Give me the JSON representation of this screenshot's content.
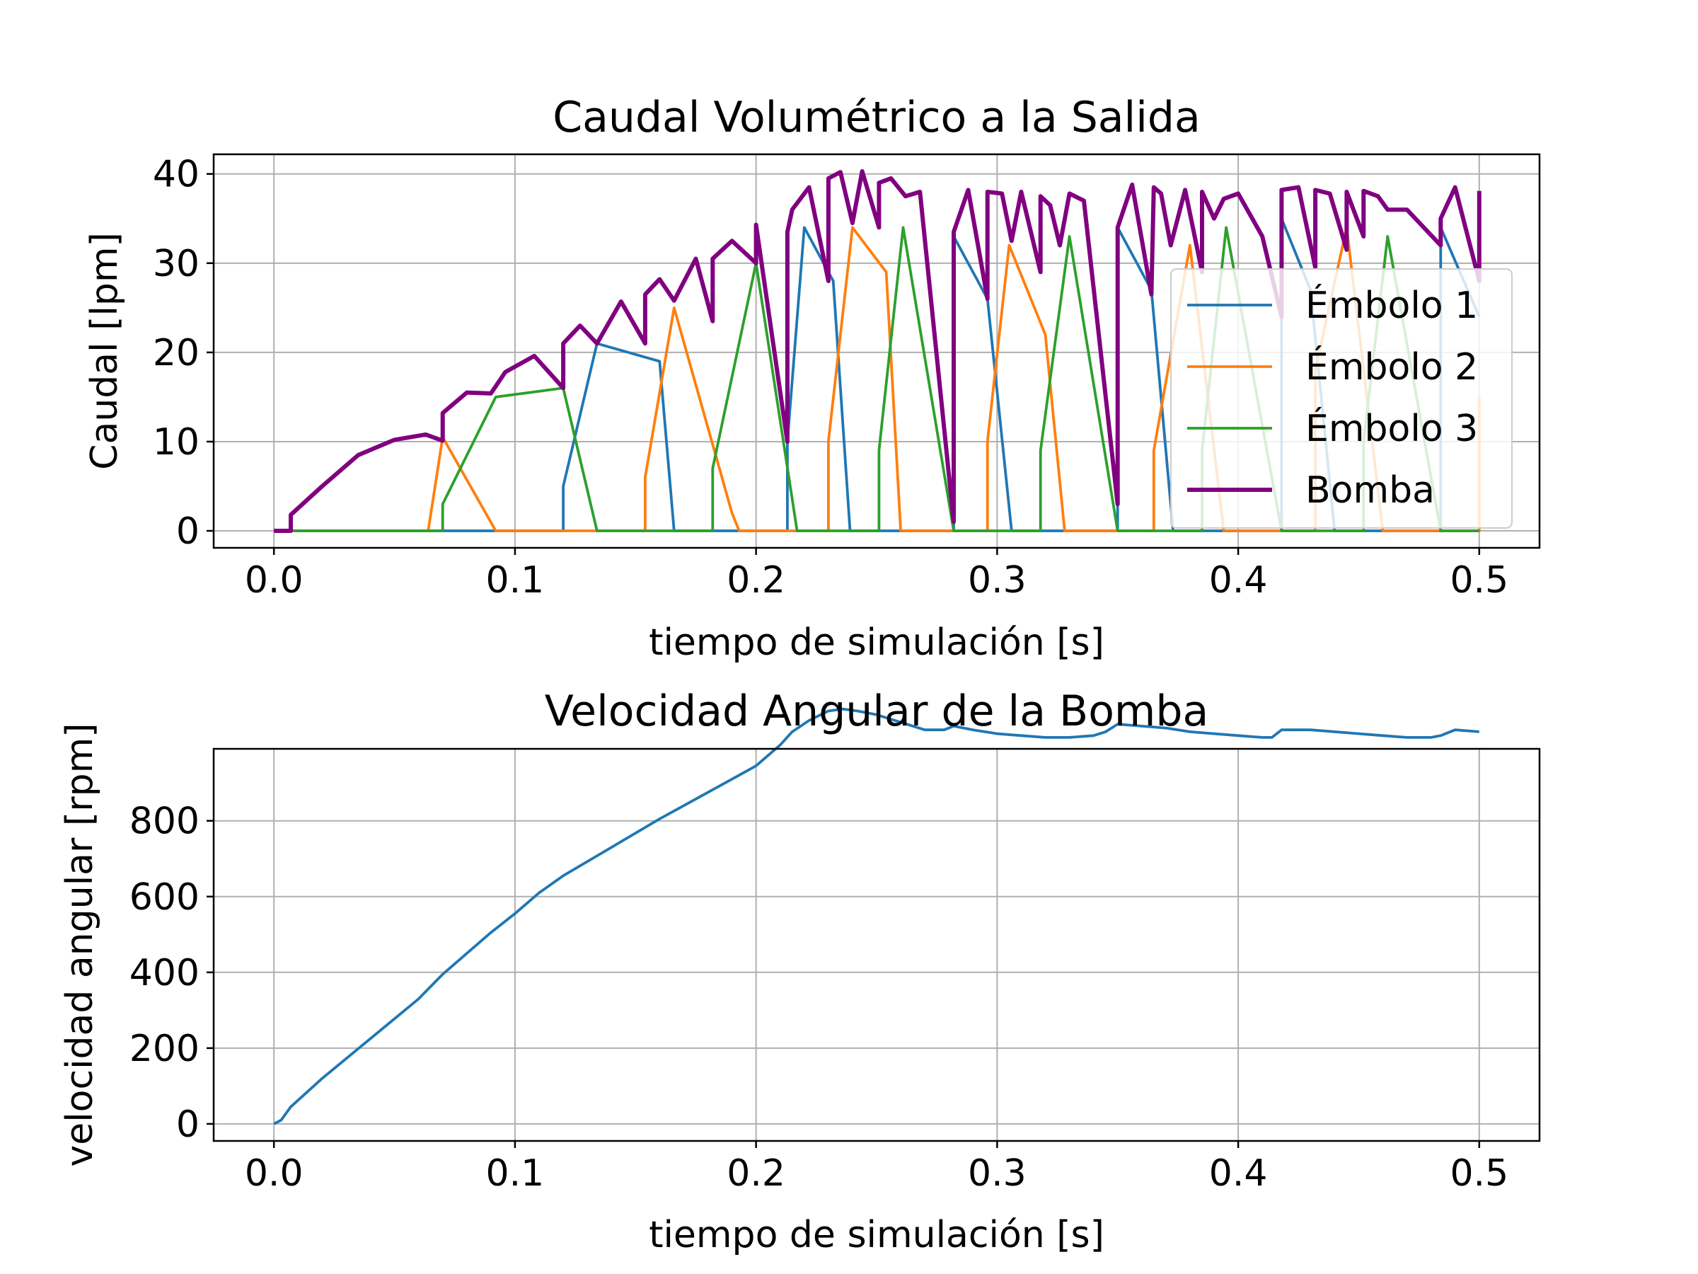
{
  "chart_data": [
    {
      "type": "line",
      "title": "Caudal Volumétrico a la Salida",
      "xlabel": "tiempo de simulación [s]",
      "ylabel": "Caudal [lpm]",
      "xlim": [
        -0.025,
        0.525
      ],
      "ylim": [
        -1.9,
        42.2
      ],
      "xticks": [
        0.0,
        0.1,
        0.2,
        0.3,
        0.4,
        0.5
      ],
      "xtick_labels": [
        "0.0",
        "0.1",
        "0.2",
        "0.3",
        "0.4",
        "0.5"
      ],
      "yticks": [
        0,
        10,
        20,
        30,
        40
      ],
      "ytick_labels": [
        "0",
        "10",
        "20",
        "30",
        "40"
      ],
      "grid": true,
      "legend": "right",
      "series": [
        {
          "name": "Émbolo 1",
          "color": "#1f77b4",
          "x": [
            0.0,
            0.12,
            0.12,
            0.134,
            0.16,
            0.166,
            0.213,
            0.213,
            0.22,
            0.232,
            0.239,
            0.282,
            0.282,
            0.296,
            0.306,
            0.35,
            0.35,
            0.364,
            0.373,
            0.418,
            0.418,
            0.43,
            0.44,
            0.484,
            0.484,
            0.5,
            0.5
          ],
          "y": [
            0,
            0,
            5,
            21,
            19,
            0,
            0,
            10,
            34,
            28,
            0,
            0,
            33,
            26,
            0,
            0,
            34,
            27,
            0,
            0,
            35,
            27,
            0,
            0,
            34,
            24,
            24
          ]
        },
        {
          "name": "Émbolo 2",
          "color": "#ff7f0e",
          "x": [
            0.0,
            0.064,
            0.07,
            0.092,
            0.154,
            0.154,
            0.166,
            0.19,
            0.193,
            0.23,
            0.23,
            0.24,
            0.254,
            0.26,
            0.296,
            0.296,
            0.305,
            0.32,
            0.328,
            0.365,
            0.365,
            0.38,
            0.394,
            0.432,
            0.432,
            0.445,
            0.46,
            0.5,
            0.5
          ],
          "y": [
            0,
            0,
            10.5,
            0,
            0,
            6,
            25,
            2,
            0,
            0,
            10,
            34,
            29,
            0,
            0,
            10,
            32,
            22,
            0,
            0,
            9,
            32,
            0,
            0,
            18,
            34,
            0,
            0,
            15
          ]
        },
        {
          "name": "Émbolo 3",
          "color": "#2ca02c",
          "x": [
            0.0,
            0.07,
            0.07,
            0.092,
            0.12,
            0.134,
            0.182,
            0.182,
            0.2,
            0.217,
            0.251,
            0.251,
            0.261,
            0.282,
            0.318,
            0.318,
            0.33,
            0.35,
            0.385,
            0.385,
            0.395,
            0.418,
            0.452,
            0.452,
            0.462,
            0.484,
            0.5
          ],
          "y": [
            0,
            0,
            3,
            15,
            16,
            0,
            0,
            7,
            30,
            0,
            0,
            9,
            34,
            0,
            0,
            9,
            33,
            0,
            0,
            9,
            34,
            0,
            0,
            10,
            33,
            0,
            0
          ]
        },
        {
          "name": "Bomba",
          "color": "#800080",
          "x": [
            0.0,
            0.007,
            0.007,
            0.02,
            0.035,
            0.05,
            0.063,
            0.07,
            0.07,
            0.08,
            0.09,
            0.096,
            0.108,
            0.12,
            0.12,
            0.127,
            0.134,
            0.144,
            0.154,
            0.154,
            0.16,
            0.166,
            0.175,
            0.182,
            0.182,
            0.19,
            0.2,
            0.2,
            0.2,
            0.213,
            0.213,
            0.215,
            0.222,
            0.23,
            0.23,
            0.235,
            0.24,
            0.244,
            0.251,
            0.251,
            0.256,
            0.262,
            0.268,
            0.282,
            0.282,
            0.288,
            0.296,
            0.296,
            0.302,
            0.306,
            0.31,
            0.318,
            0.318,
            0.322,
            0.326,
            0.33,
            0.336,
            0.35,
            0.35,
            0.356,
            0.364,
            0.365,
            0.368,
            0.372,
            0.378,
            0.385,
            0.385,
            0.39,
            0.394,
            0.4,
            0.41,
            0.418,
            0.418,
            0.425,
            0.432,
            0.432,
            0.438,
            0.445,
            0.445,
            0.452,
            0.452,
            0.458,
            0.462,
            0.47,
            0.484,
            0.484,
            0.49,
            0.5,
            0.5
          ],
          "y": [
            0,
            0,
            1.8,
            5,
            8.5,
            10.2,
            10.8,
            10.1,
            13.2,
            15.5,
            15.4,
            17.8,
            19.6,
            16,
            21,
            23,
            21,
            25.7,
            21,
            26.5,
            28.2,
            25.8,
            30.5,
            23.5,
            30.5,
            32.5,
            30,
            34.3,
            34.3,
            10,
            33.5,
            36,
            38.5,
            28,
            39.5,
            40.2,
            34.5,
            40.3,
            34,
            39,
            39.5,
            37.5,
            38,
            1,
            33.5,
            38.2,
            26,
            38,
            37.8,
            32.5,
            38,
            29,
            37.5,
            36.5,
            32,
            37.8,
            37,
            3,
            34,
            38.8,
            26.5,
            38.5,
            37.8,
            32,
            38.2,
            29,
            38,
            35,
            37.2,
            37.8,
            33,
            24,
            38.2,
            38.5,
            29.5,
            38.2,
            37.8,
            31.5,
            38,
            33,
            38.1,
            37.5,
            36,
            36,
            32,
            35,
            38.5,
            28,
            38.1
          ]
        }
      ]
    },
    {
      "type": "line",
      "title": "Velocidad Angular de la Bomba",
      "xlabel": "tiempo de simulación [s]",
      "ylabel": "velocidad angular [rpm]",
      "xlim": [
        -0.025,
        0.525
      ],
      "ylim": [
        -45,
        990
      ],
      "xticks": [
        0.0,
        0.1,
        0.2,
        0.3,
        0.4,
        0.5
      ],
      "xtick_labels": [
        "0.0",
        "0.1",
        "0.2",
        "0.3",
        "0.4",
        "0.5"
      ],
      "yticks": [
        0,
        200,
        400,
        600,
        800
      ],
      "ytick_labels": [
        "0",
        "200",
        "400",
        "600",
        "800"
      ],
      "grid": true,
      "series": [
        {
          "color": "#1f77b4",
          "x": [
            0.0,
            0.003,
            0.007,
            0.02,
            0.04,
            0.06,
            0.07,
            0.09,
            0.1,
            0.11,
            0.12,
            0.14,
            0.16,
            0.18,
            0.2,
            0.21,
            0.215,
            0.222,
            0.23,
            0.236,
            0.242,
            0.25,
            0.26,
            0.27,
            0.278,
            0.282,
            0.29,
            0.3,
            0.31,
            0.32,
            0.33,
            0.34,
            0.345,
            0.35,
            0.36,
            0.37,
            0.38,
            0.39,
            0.4,
            0.41,
            0.414,
            0.418,
            0.43,
            0.44,
            0.45,
            0.46,
            0.47,
            0.48,
            0.484,
            0.49,
            0.5
          ],
          "y": [
            0,
            10,
            45,
            120,
            225,
            330,
            395,
            505,
            555,
            610,
            655,
            730,
            805,
            875,
            945,
            1000,
            1035,
            1065,
            1090,
            1095,
            1090,
            1080,
            1060,
            1040,
            1040,
            1050,
            1040,
            1030,
            1025,
            1020,
            1020,
            1025,
            1035,
            1055,
            1050,
            1045,
            1035,
            1030,
            1025,
            1020,
            1020,
            1040,
            1040,
            1035,
            1030,
            1025,
            1020,
            1020,
            1025,
            1040,
            1035
          ]
        }
      ]
    }
  ]
}
